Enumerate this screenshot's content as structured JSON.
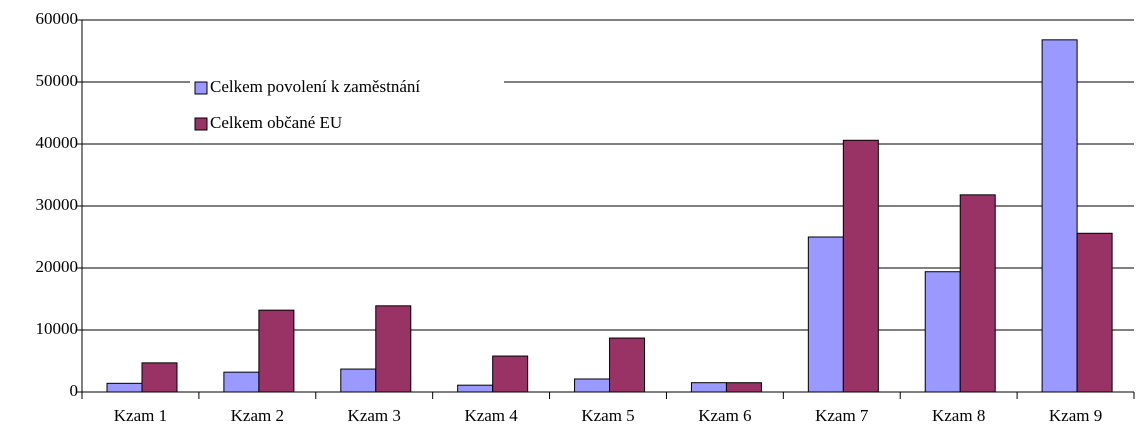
{
  "chart_data": {
    "type": "bar",
    "categories": [
      "Kzam  1",
      "Kzam  2",
      "Kzam  3",
      "Kzam  4",
      "Kzam  5",
      "Kzam  6",
      "Kzam  7",
      "Kzam  8",
      "Kzam  9"
    ],
    "series": [
      {
        "name": "Celkem povolení k zaměstnání",
        "color": "#9999ff",
        "values": [
          1400,
          3200,
          3700,
          1100,
          2100,
          1500,
          25000,
          19400,
          56800
        ]
      },
      {
        "name": "Celkem občané EU",
        "color": "#993366",
        "values": [
          4700,
          13200,
          13900,
          5800,
          8700,
          1500,
          40600,
          31800,
          25600
        ]
      }
    ],
    "ylim": [
      0,
      60000
    ],
    "yticks": [
      0,
      10000,
      20000,
      30000,
      40000,
      50000,
      60000
    ],
    "grid": true
  }
}
